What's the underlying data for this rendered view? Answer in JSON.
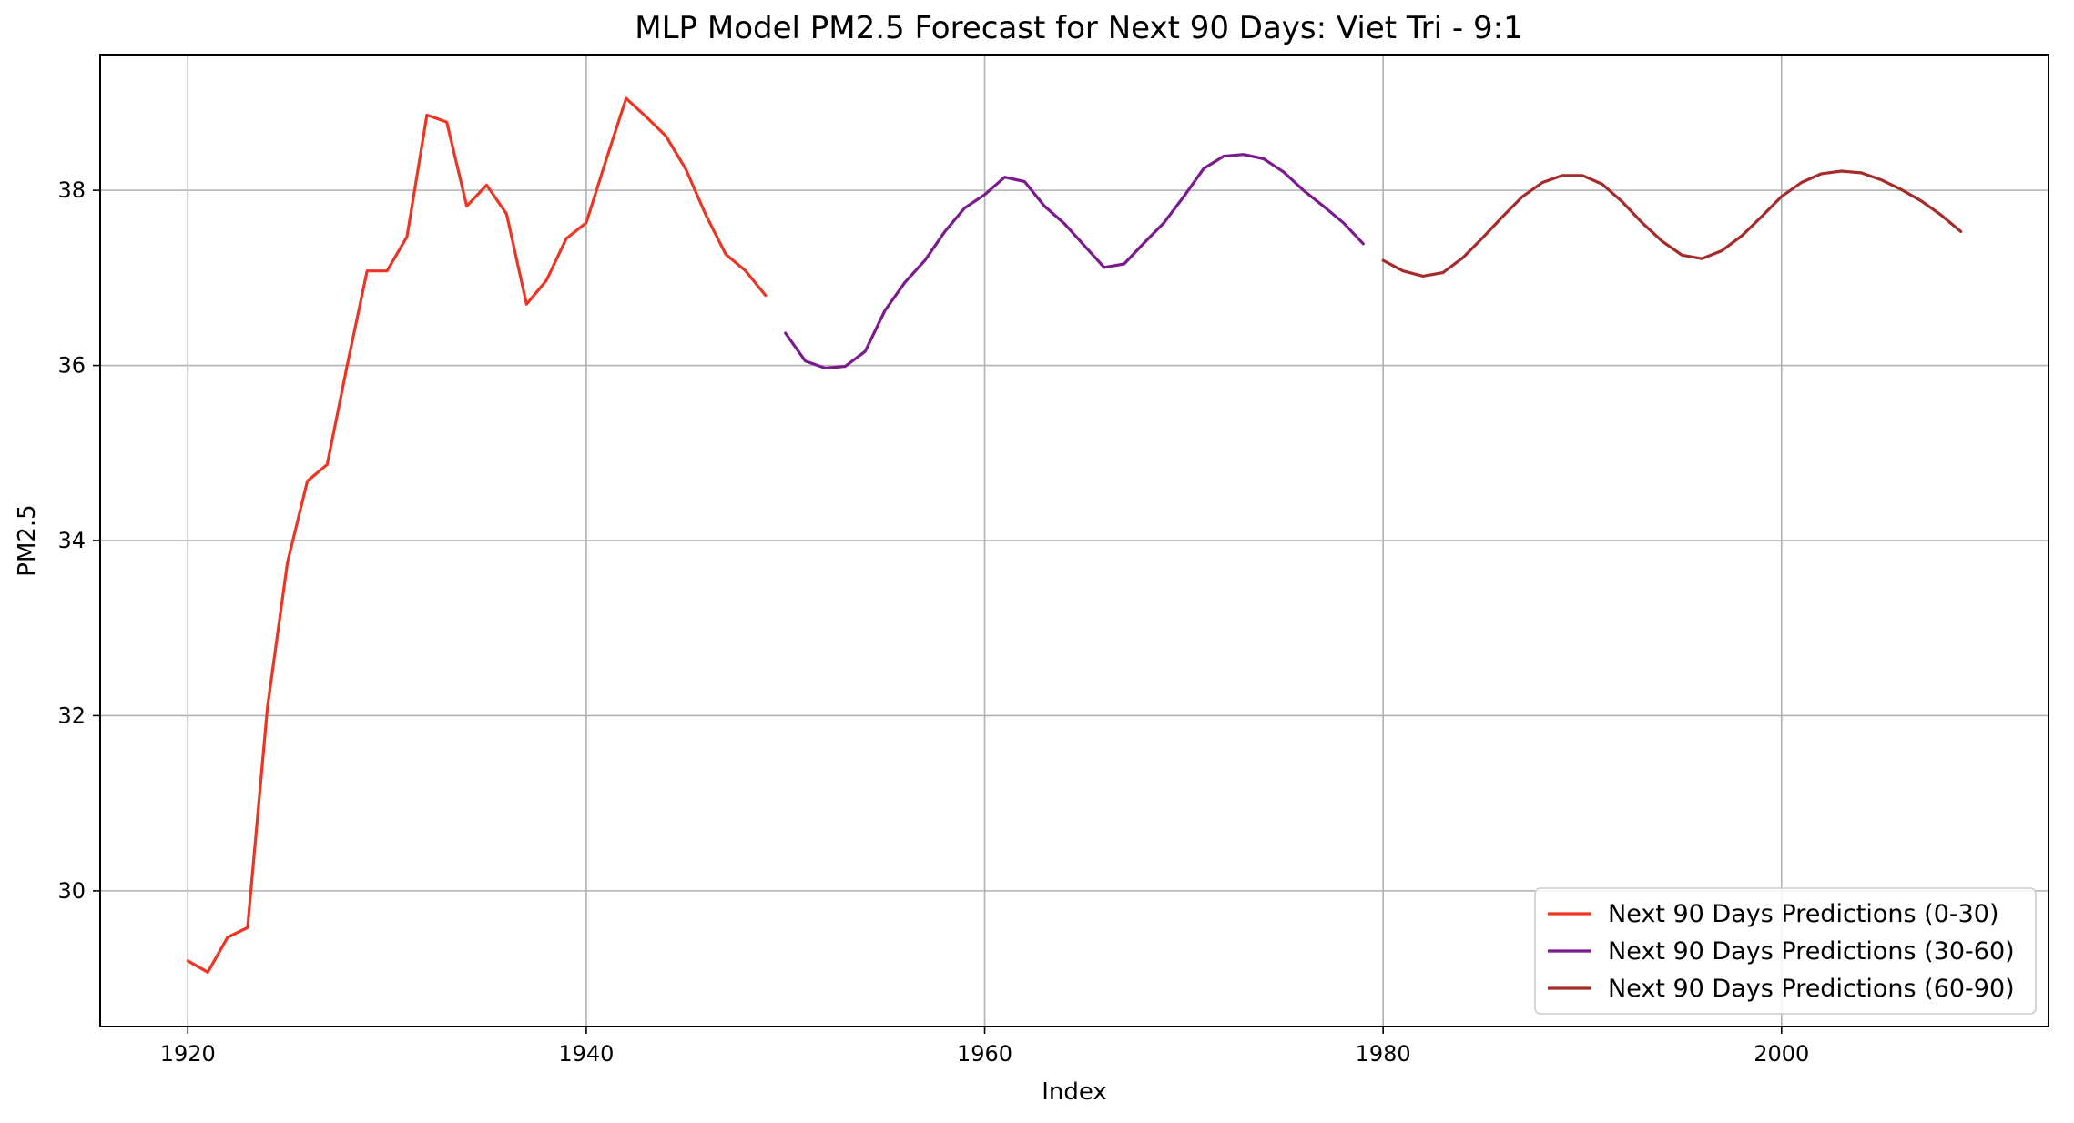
{
  "chart_data": {
    "type": "line",
    "title": "MLP Model PM2.5 Forecast for Next 90 Days: Viet Tri - 9:1",
    "xlabel": "Index",
    "ylabel": "PM2.5",
    "xlim": [
      1915.6,
      2013.4
    ],
    "ylim": [
      28.45,
      39.55
    ],
    "xticks": [
      1920,
      1940,
      1960,
      1980,
      2000
    ],
    "yticks": [
      30,
      32,
      34,
      36,
      38
    ],
    "grid": true,
    "legend_position": "lower-right",
    "series": [
      {
        "name": "Next 90 Days Predictions (0-30)",
        "color": "#ee3524",
        "x": [
          1920,
          1921,
          1922,
          1923,
          1924,
          1925,
          1926,
          1927,
          1928,
          1929,
          1930,
          1931,
          1932,
          1933,
          1934,
          1935,
          1936,
          1937,
          1938,
          1939,
          1940,
          1941,
          1942,
          1943,
          1944,
          1945,
          1946,
          1947,
          1948,
          1949
        ],
        "y": [
          29.2,
          29.07,
          29.47,
          29.58,
          32.1,
          33.75,
          34.68,
          34.87,
          36.0,
          37.08,
          37.08,
          37.47,
          38.86,
          38.78,
          37.82,
          38.06,
          37.73,
          36.7,
          36.97,
          37.45,
          37.63,
          38.35,
          39.05,
          38.84,
          38.62,
          38.24,
          37.72,
          37.27,
          37.08,
          36.8
        ]
      },
      {
        "name": "Next 90 Days Predictions (30-60)",
        "color": "#7b1a8f",
        "x": [
          1950,
          1951,
          1952,
          1953,
          1954,
          1955,
          1956,
          1957,
          1958,
          1959,
          1960,
          1961,
          1962,
          1963,
          1964,
          1965,
          1966,
          1967,
          1968,
          1969,
          1970,
          1971,
          1972,
          1973,
          1974,
          1975,
          1976,
          1977,
          1978,
          1979
        ],
        "y": [
          36.37,
          36.05,
          35.97,
          35.99,
          36.16,
          36.63,
          36.95,
          37.2,
          37.53,
          37.8,
          37.95,
          38.15,
          38.1,
          37.82,
          37.62,
          37.37,
          37.12,
          37.16,
          37.4,
          37.63,
          37.93,
          38.25,
          38.39,
          38.41,
          38.36,
          38.21,
          38.0,
          37.82,
          37.63,
          37.39
        ]
      },
      {
        "name": "Next 90 Days Predictions (60-90)",
        "color": "#a52a2a",
        "x": [
          1980,
          1981,
          1982,
          1983,
          1984,
          1985,
          1986,
          1987,
          1988,
          1989,
          1990,
          1991,
          1992,
          1993,
          1994,
          1995,
          1996,
          1997,
          1998,
          1999,
          2000,
          2001,
          2002,
          2003,
          2004,
          2005,
          2006,
          2007,
          2008,
          2009
        ],
        "y": [
          37.2,
          37.08,
          37.02,
          37.06,
          37.23,
          37.46,
          37.7,
          37.93,
          38.09,
          38.17,
          38.17,
          38.07,
          37.87,
          37.63,
          37.42,
          37.26,
          37.22,
          37.31,
          37.48,
          37.7,
          37.93,
          38.09,
          38.19,
          38.22,
          38.2,
          38.12,
          38.01,
          37.88,
          37.72,
          37.53
        ]
      }
    ]
  }
}
